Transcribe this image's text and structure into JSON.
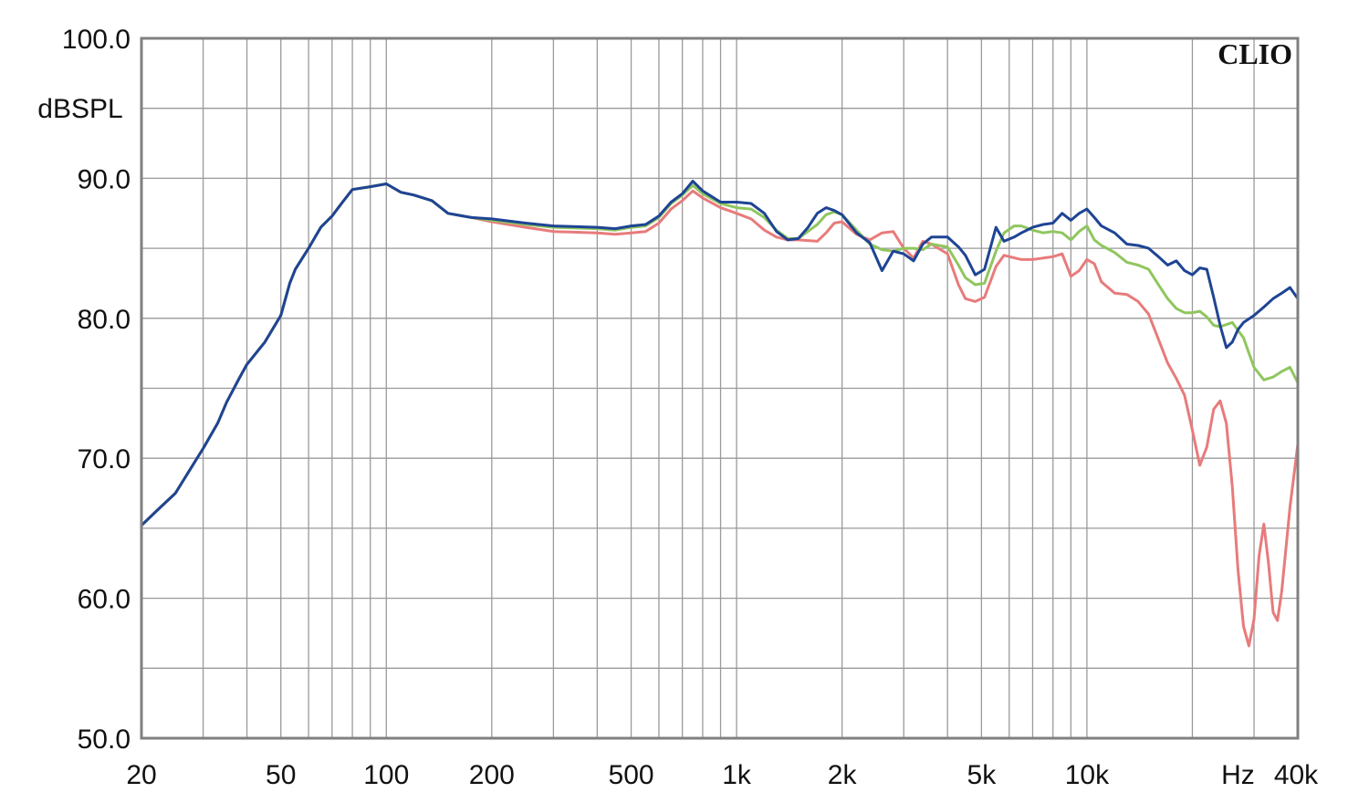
{
  "brand": "CLIO",
  "chart_data": {
    "type": "line",
    "x_scale": "log",
    "xlim": [
      20,
      40000
    ],
    "ylim": [
      50,
      100
    ],
    "ylabel": "dBSPL",
    "xunit_label": "Hz",
    "grid": true,
    "y_ticks": [
      {
        "value": 100,
        "label": "100.0"
      },
      {
        "value": 90,
        "label": "90.0"
      },
      {
        "value": 80,
        "label": "80.0"
      },
      {
        "value": 70,
        "label": "70.0"
      },
      {
        "value": 60,
        "label": "60.0"
      },
      {
        "value": 50,
        "label": "50.0"
      }
    ],
    "y_minor_ticks": [
      95,
      85,
      75,
      65,
      55
    ],
    "x_ticks": [
      {
        "value": 20,
        "label": "20"
      },
      {
        "value": 50,
        "label": "50"
      },
      {
        "value": 100,
        "label": "100"
      },
      {
        "value": 200,
        "label": "200"
      },
      {
        "value": 500,
        "label": "500"
      },
      {
        "value": 1000,
        "label": "1k"
      },
      {
        "value": 2000,
        "label": "2k"
      },
      {
        "value": 5000,
        "label": "5k"
      },
      {
        "value": 10000,
        "label": "10k"
      },
      {
        "value": 40000,
        "label": "40k"
      }
    ],
    "x_grid": [
      20,
      30,
      40,
      50,
      60,
      70,
      80,
      90,
      100,
      200,
      300,
      400,
      500,
      600,
      700,
      800,
      900,
      1000,
      2000,
      3000,
      4000,
      5000,
      6000,
      7000,
      8000,
      9000,
      10000,
      20000,
      30000,
      40000
    ],
    "series": [
      {
        "color": "#e87b7b",
        "points": [
          [
            20,
            65.2
          ],
          [
            22,
            66.2
          ],
          [
            25,
            67.5
          ],
          [
            28,
            69.5
          ],
          [
            30,
            70.7
          ],
          [
            33,
            72.5
          ],
          [
            35,
            74
          ],
          [
            38,
            75.7
          ],
          [
            40,
            76.7
          ],
          [
            45,
            78.3
          ],
          [
            50,
            80.2
          ],
          [
            53,
            82.5
          ],
          [
            55,
            83.5
          ],
          [
            60,
            85
          ],
          [
            65,
            86.5
          ],
          [
            70,
            87.3
          ],
          [
            75,
            88.3
          ],
          [
            80,
            89.2
          ],
          [
            90,
            89.4
          ],
          [
            100,
            89.6
          ],
          [
            110,
            89
          ],
          [
            120,
            88.8
          ],
          [
            135,
            88.4
          ],
          [
            150,
            87.5
          ],
          [
            175,
            87.2
          ],
          [
            200,
            86.9
          ],
          [
            250,
            86.5
          ],
          [
            300,
            86.2
          ],
          [
            400,
            86.1
          ],
          [
            450,
            86
          ],
          [
            500,
            86.1
          ],
          [
            550,
            86.2
          ],
          [
            600,
            86.8
          ],
          [
            650,
            87.8
          ],
          [
            700,
            88.4
          ],
          [
            750,
            89.1
          ],
          [
            800,
            88.6
          ],
          [
            900,
            87.9
          ],
          [
            1000,
            87.5
          ],
          [
            1100,
            87.1
          ],
          [
            1200,
            86.3
          ],
          [
            1300,
            85.8
          ],
          [
            1400,
            85.6
          ],
          [
            1500,
            85.6
          ],
          [
            1700,
            85.5
          ],
          [
            1800,
            86.1
          ],
          [
            1900,
            86.8
          ],
          [
            2000,
            86.9
          ],
          [
            2200,
            86
          ],
          [
            2400,
            85.6
          ],
          [
            2600,
            86.1
          ],
          [
            2800,
            86.2
          ],
          [
            3000,
            85
          ],
          [
            3200,
            84.3
          ],
          [
            3400,
            85.5
          ],
          [
            3600,
            85.3
          ],
          [
            4000,
            84.6
          ],
          [
            4300,
            82.4
          ],
          [
            4500,
            81.4
          ],
          [
            4800,
            81.2
          ],
          [
            5100,
            81.5
          ],
          [
            5500,
            83.7
          ],
          [
            5800,
            84.5
          ],
          [
            6500,
            84.2
          ],
          [
            7000,
            84.2
          ],
          [
            7500,
            84.3
          ],
          [
            8000,
            84.4
          ],
          [
            8500,
            84.6
          ],
          [
            9000,
            83
          ],
          [
            9500,
            83.4
          ],
          [
            10000,
            84.2
          ],
          [
            10500,
            83.9
          ],
          [
            11000,
            82.6
          ],
          [
            12000,
            81.8
          ],
          [
            13000,
            81.7
          ],
          [
            14000,
            81.2
          ],
          [
            15000,
            80.3
          ],
          [
            16000,
            78.5
          ],
          [
            17000,
            76.8
          ],
          [
            18000,
            75.7
          ],
          [
            19000,
            74.5
          ],
          [
            20000,
            72
          ],
          [
            21000,
            69.5
          ],
          [
            22000,
            70.8
          ],
          [
            23000,
            73.5
          ],
          [
            24000,
            74.1
          ],
          [
            25000,
            72.5
          ],
          [
            26000,
            68
          ],
          [
            27000,
            62
          ],
          [
            28000,
            58
          ],
          [
            29000,
            56.6
          ],
          [
            30000,
            58.5
          ],
          [
            31000,
            63
          ],
          [
            32000,
            65.3
          ],
          [
            33000,
            62.5
          ],
          [
            34000,
            59
          ],
          [
            35000,
            58.4
          ],
          [
            36000,
            60.5
          ],
          [
            38000,
            66.5
          ],
          [
            40000,
            71
          ]
        ]
      },
      {
        "color": "#8fc65e",
        "points": [
          [
            20,
            65.2
          ],
          [
            22,
            66.2
          ],
          [
            25,
            67.5
          ],
          [
            28,
            69.5
          ],
          [
            30,
            70.7
          ],
          [
            33,
            72.5
          ],
          [
            35,
            74
          ],
          [
            38,
            75.7
          ],
          [
            40,
            76.7
          ],
          [
            45,
            78.3
          ],
          [
            50,
            80.2
          ],
          [
            53,
            82.5
          ],
          [
            55,
            83.5
          ],
          [
            60,
            85
          ],
          [
            65,
            86.5
          ],
          [
            70,
            87.3
          ],
          [
            75,
            88.3
          ],
          [
            80,
            89.2
          ],
          [
            90,
            89.4
          ],
          [
            100,
            89.6
          ],
          [
            110,
            89
          ],
          [
            120,
            88.8
          ],
          [
            135,
            88.4
          ],
          [
            150,
            87.5
          ],
          [
            175,
            87.2
          ],
          [
            200,
            87
          ],
          [
            250,
            86.7
          ],
          [
            300,
            86.5
          ],
          [
            400,
            86.4
          ],
          [
            450,
            86.3
          ],
          [
            500,
            86.5
          ],
          [
            550,
            86.6
          ],
          [
            600,
            87.2
          ],
          [
            650,
            88.2
          ],
          [
            700,
            88.8
          ],
          [
            750,
            89.5
          ],
          [
            800,
            88.9
          ],
          [
            900,
            88.2
          ],
          [
            1000,
            87.9
          ],
          [
            1100,
            87.8
          ],
          [
            1200,
            87.2
          ],
          [
            1300,
            86.3
          ],
          [
            1400,
            85.7
          ],
          [
            1500,
            85.7
          ],
          [
            1700,
            86.7
          ],
          [
            1800,
            87.4
          ],
          [
            1900,
            87.6
          ],
          [
            2000,
            87.4
          ],
          [
            2200,
            86.3
          ],
          [
            2400,
            85.3
          ],
          [
            2600,
            84.9
          ],
          [
            2800,
            84.8
          ],
          [
            3000,
            85
          ],
          [
            3200,
            85
          ],
          [
            3400,
            84.9
          ],
          [
            3600,
            85.3
          ],
          [
            4000,
            85.1
          ],
          [
            4300,
            83.8
          ],
          [
            4500,
            82.9
          ],
          [
            4800,
            82.4
          ],
          [
            5100,
            82.5
          ],
          [
            5500,
            84.8
          ],
          [
            5800,
            86.1
          ],
          [
            6200,
            86.6
          ],
          [
            6500,
            86.6
          ],
          [
            7000,
            86.3
          ],
          [
            7500,
            86.1
          ],
          [
            8000,
            86.2
          ],
          [
            8500,
            86.1
          ],
          [
            9000,
            85.6
          ],
          [
            9500,
            86.2
          ],
          [
            10000,
            86.6
          ],
          [
            10500,
            85.6
          ],
          [
            11000,
            85.2
          ],
          [
            12000,
            84.7
          ],
          [
            13000,
            84
          ],
          [
            14000,
            83.8
          ],
          [
            15000,
            83.5
          ],
          [
            16000,
            82.4
          ],
          [
            17000,
            81.4
          ],
          [
            18000,
            80.7
          ],
          [
            19000,
            80.4
          ],
          [
            20000,
            80.4
          ],
          [
            21000,
            80.5
          ],
          [
            22000,
            80.1
          ],
          [
            23000,
            79.5
          ],
          [
            24000,
            79.4
          ],
          [
            26000,
            79.7
          ],
          [
            28000,
            78.6
          ],
          [
            30000,
            76.5
          ],
          [
            32000,
            75.6
          ],
          [
            34000,
            75.8
          ],
          [
            36000,
            76.2
          ],
          [
            38000,
            76.5
          ],
          [
            40000,
            75.4
          ]
        ]
      },
      {
        "color": "#1e4494",
        "points": [
          [
            20,
            65.2
          ],
          [
            22,
            66.2
          ],
          [
            25,
            67.5
          ],
          [
            28,
            69.5
          ],
          [
            30,
            70.7
          ],
          [
            33,
            72.5
          ],
          [
            35,
            74
          ],
          [
            38,
            75.7
          ],
          [
            40,
            76.7
          ],
          [
            45,
            78.3
          ],
          [
            50,
            80.2
          ],
          [
            53,
            82.5
          ],
          [
            55,
            83.5
          ],
          [
            60,
            85
          ],
          [
            65,
            86.5
          ],
          [
            70,
            87.3
          ],
          [
            75,
            88.3
          ],
          [
            80,
            89.2
          ],
          [
            90,
            89.4
          ],
          [
            100,
            89.6
          ],
          [
            110,
            89
          ],
          [
            120,
            88.8
          ],
          [
            135,
            88.4
          ],
          [
            150,
            87.5
          ],
          [
            175,
            87.2
          ],
          [
            200,
            87.1
          ],
          [
            250,
            86.8
          ],
          [
            300,
            86.6
          ],
          [
            400,
            86.5
          ],
          [
            450,
            86.4
          ],
          [
            500,
            86.6
          ],
          [
            550,
            86.7
          ],
          [
            600,
            87.3
          ],
          [
            650,
            88.3
          ],
          [
            700,
            88.9
          ],
          [
            750,
            89.8
          ],
          [
            800,
            89.1
          ],
          [
            900,
            88.3
          ],
          [
            1000,
            88.3
          ],
          [
            1100,
            88.2
          ],
          [
            1200,
            87.5
          ],
          [
            1300,
            86.2
          ],
          [
            1400,
            85.6
          ],
          [
            1500,
            85.7
          ],
          [
            1600,
            86.5
          ],
          [
            1700,
            87.5
          ],
          [
            1800,
            87.9
          ],
          [
            1900,
            87.7
          ],
          [
            2000,
            87.4
          ],
          [
            2200,
            86.1
          ],
          [
            2400,
            85.4
          ],
          [
            2600,
            83.4
          ],
          [
            2800,
            84.8
          ],
          [
            3000,
            84.6
          ],
          [
            3200,
            84.1
          ],
          [
            3400,
            85.3
          ],
          [
            3600,
            85.8
          ],
          [
            4000,
            85.8
          ],
          [
            4300,
            85.1
          ],
          [
            4500,
            84.5
          ],
          [
            4800,
            83.1
          ],
          [
            5100,
            83.5
          ],
          [
            5500,
            86.5
          ],
          [
            5800,
            85.5
          ],
          [
            6200,
            85.8
          ],
          [
            6500,
            86.1
          ],
          [
            7000,
            86.5
          ],
          [
            7500,
            86.7
          ],
          [
            8000,
            86.8
          ],
          [
            8500,
            87.5
          ],
          [
            9000,
            87
          ],
          [
            9500,
            87.5
          ],
          [
            10000,
            87.8
          ],
          [
            10500,
            87.2
          ],
          [
            11000,
            86.6
          ],
          [
            12000,
            86.1
          ],
          [
            13000,
            85.3
          ],
          [
            14000,
            85.2
          ],
          [
            15000,
            85
          ],
          [
            16000,
            84.4
          ],
          [
            17000,
            83.8
          ],
          [
            18000,
            84.1
          ],
          [
            19000,
            83.4
          ],
          [
            20000,
            83.1
          ],
          [
            21000,
            83.6
          ],
          [
            22000,
            83.5
          ],
          [
            23000,
            81.5
          ],
          [
            24000,
            79.5
          ],
          [
            25000,
            77.9
          ],
          [
            26000,
            78.3
          ],
          [
            27000,
            79.2
          ],
          [
            28000,
            79.7
          ],
          [
            30000,
            80.2
          ],
          [
            32000,
            80.8
          ],
          [
            34000,
            81.4
          ],
          [
            36000,
            81.8
          ],
          [
            38000,
            82.2
          ],
          [
            40000,
            81.4
          ]
        ]
      }
    ]
  }
}
